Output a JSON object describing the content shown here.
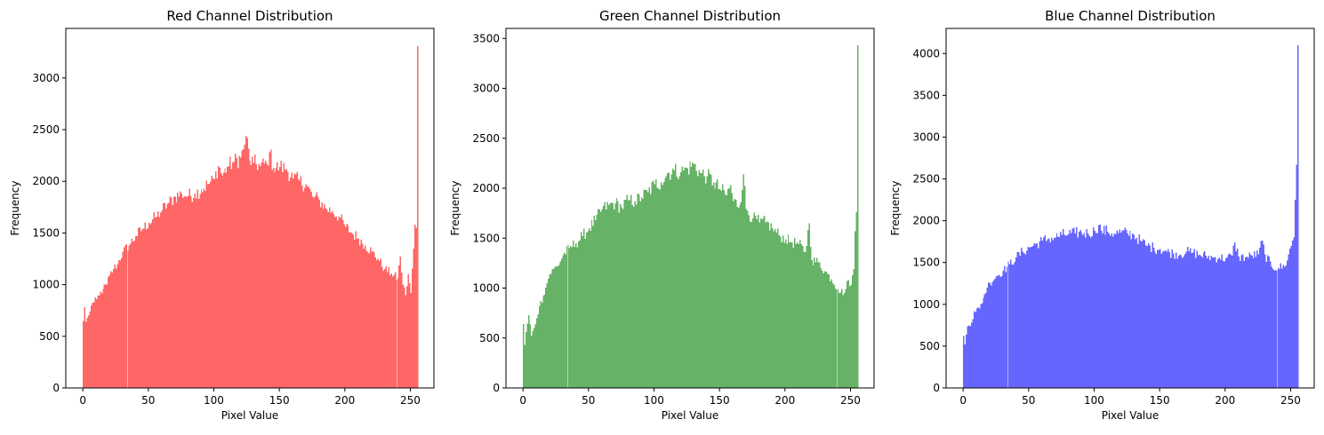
{
  "chart_data": [
    {
      "type": "bar",
      "title": "Red Channel Distribution",
      "xlabel": "Pixel Value",
      "ylabel": "Frequency",
      "color": "#ff6666",
      "xlim": [
        -13,
        268
      ],
      "ylim": [
        0,
        3480
      ],
      "xticks": [
        0,
        50,
        100,
        150,
        200,
        250
      ],
      "yticks": [
        0,
        500,
        1000,
        1500,
        2000,
        2500,
        3000
      ],
      "anchors": [
        [
          0,
          650
        ],
        [
          1,
          780
        ],
        [
          2,
          640
        ],
        [
          4,
          700
        ],
        [
          6,
          800
        ],
        [
          8,
          830
        ],
        [
          10,
          860
        ],
        [
          12,
          900
        ],
        [
          15,
          960
        ],
        [
          18,
          1000
        ],
        [
          20,
          1090
        ],
        [
          23,
          1150
        ],
        [
          26,
          1200
        ],
        [
          30,
          1320
        ],
        [
          35,
          1380
        ],
        [
          40,
          1470
        ],
        [
          45,
          1540
        ],
        [
          50,
          1600
        ],
        [
          55,
          1650
        ],
        [
          60,
          1720
        ],
        [
          65,
          1790
        ],
        [
          70,
          1850
        ],
        [
          75,
          1880
        ],
        [
          80,
          1860
        ],
        [
          85,
          1880
        ],
        [
          90,
          1920
        ],
        [
          95,
          1970
        ],
        [
          100,
          2020
        ],
        [
          103,
          2150
        ],
        [
          106,
          2060
        ],
        [
          110,
          2140
        ],
        [
          115,
          2190
        ],
        [
          120,
          2230
        ],
        [
          122,
          2310
        ],
        [
          124,
          2440
        ],
        [
          127,
          2200
        ],
        [
          130,
          2180
        ],
        [
          135,
          2150
        ],
        [
          140,
          2170
        ],
        [
          142,
          2280
        ],
        [
          145,
          2130
        ],
        [
          150,
          2140
        ],
        [
          155,
          2120
        ],
        [
          160,
          2030
        ],
        [
          165,
          2000
        ],
        [
          170,
          1970
        ],
        [
          175,
          1850
        ],
        [
          180,
          1820
        ],
        [
          185,
          1740
        ],
        [
          190,
          1710
        ],
        [
          195,
          1660
        ],
        [
          200,
          1560
        ],
        [
          205,
          1500
        ],
        [
          210,
          1450
        ],
        [
          215,
          1380
        ],
        [
          220,
          1320
        ],
        [
          225,
          1250
        ],
        [
          230,
          1150
        ],
        [
          235,
          1110
        ],
        [
          240,
          1060
        ],
        [
          242,
          1270
        ],
        [
          244,
          1000
        ],
        [
          246,
          900
        ],
        [
          248,
          1100
        ],
        [
          250,
          920
        ],
        [
          252,
          1350
        ],
        [
          253,
          1580
        ],
        [
          254,
          1550
        ],
        [
          255,
          3310
        ]
      ]
    },
    {
      "type": "bar",
      "title": "Green Channel Distribution",
      "xlabel": "Pixel Value",
      "ylabel": "Frequency",
      "color": "#66b266",
      "xlim": [
        -13,
        268
      ],
      "ylim": [
        0,
        3600
      ],
      "xticks": [
        0,
        50,
        100,
        150,
        200,
        250
      ],
      "yticks": [
        0,
        500,
        1000,
        1500,
        2000,
        2500,
        3000,
        3500
      ],
      "anchors": [
        [
          0,
          640
        ],
        [
          1,
          430
        ],
        [
          2,
          560
        ],
        [
          4,
          730
        ],
        [
          6,
          520
        ],
        [
          8,
          600
        ],
        [
          10,
          700
        ],
        [
          12,
          820
        ],
        [
          15,
          920
        ],
        [
          18,
          1050
        ],
        [
          20,
          1140
        ],
        [
          23,
          1190
        ],
        [
          26,
          1220
        ],
        [
          30,
          1330
        ],
        [
          35,
          1400
        ],
        [
          40,
          1450
        ],
        [
          45,
          1520
        ],
        [
          50,
          1600
        ],
        [
          55,
          1680
        ],
        [
          60,
          1790
        ],
        [
          65,
          1830
        ],
        [
          70,
          1850
        ],
        [
          75,
          1810
        ],
        [
          80,
          1880
        ],
        [
          85,
          1870
        ],
        [
          90,
          1910
        ],
        [
          95,
          1960
        ],
        [
          100,
          2040
        ],
        [
          105,
          2060
        ],
        [
          108,
          2100
        ],
        [
          110,
          2150
        ],
        [
          115,
          2180
        ],
        [
          120,
          2160
        ],
        [
          125,
          2200
        ],
        [
          130,
          2240
        ],
        [
          135,
          2150
        ],
        [
          140,
          2120
        ],
        [
          145,
          2060
        ],
        [
          150,
          1990
        ],
        [
          155,
          1930
        ],
        [
          158,
          2030
        ],
        [
          160,
          1870
        ],
        [
          165,
          1830
        ],
        [
          168,
          2140
        ],
        [
          170,
          1790
        ],
        [
          175,
          1700
        ],
        [
          180,
          1660
        ],
        [
          185,
          1660
        ],
        [
          190,
          1600
        ],
        [
          195,
          1530
        ],
        [
          200,
          1490
        ],
        [
          205,
          1460
        ],
        [
          210,
          1440
        ],
        [
          215,
          1360
        ],
        [
          218,
          1650
        ],
        [
          220,
          1280
        ],
        [
          225,
          1260
        ],
        [
          230,
          1170
        ],
        [
          235,
          1090
        ],
        [
          240,
          990
        ],
        [
          245,
          950
        ],
        [
          248,
          1080
        ],
        [
          250,
          1030
        ],
        [
          252,
          1190
        ],
        [
          253,
          1570
        ],
        [
          254,
          1760
        ],
        [
          255,
          3430
        ]
      ]
    },
    {
      "type": "bar",
      "title": "Blue Channel Distribution",
      "xlabel": "Pixel Value",
      "ylabel": "Frequency",
      "color": "#6666ff",
      "xlim": [
        -13,
        268
      ],
      "ylim": [
        0,
        4300
      ],
      "xticks": [
        0,
        50,
        100,
        150,
        200,
        250
      ],
      "yticks": [
        0,
        500,
        1000,
        1500,
        2000,
        2500,
        3000,
        3500,
        4000
      ],
      "anchors": [
        [
          0,
          620
        ],
        [
          1,
          520
        ],
        [
          3,
          740
        ],
        [
          6,
          780
        ],
        [
          8,
          920
        ],
        [
          12,
          950
        ],
        [
          15,
          1080
        ],
        [
          18,
          1200
        ],
        [
          20,
          1260
        ],
        [
          25,
          1340
        ],
        [
          30,
          1400
        ],
        [
          35,
          1480
        ],
        [
          40,
          1560
        ],
        [
          45,
          1630
        ],
        [
          50,
          1680
        ],
        [
          55,
          1720
        ],
        [
          60,
          1760
        ],
        [
          65,
          1790
        ],
        [
          70,
          1800
        ],
        [
          75,
          1830
        ],
        [
          80,
          1840
        ],
        [
          85,
          1850
        ],
        [
          90,
          1860
        ],
        [
          95,
          1850
        ],
        [
          100,
          1880
        ],
        [
          103,
          1950
        ],
        [
          105,
          1880
        ],
        [
          110,
          1870
        ],
        [
          115,
          1850
        ],
        [
          120,
          1860
        ],
        [
          125,
          1850
        ],
        [
          130,
          1830
        ],
        [
          135,
          1760
        ],
        [
          140,
          1700
        ],
        [
          145,
          1680
        ],
        [
          150,
          1660
        ],
        [
          155,
          1630
        ],
        [
          160,
          1610
        ],
        [
          165,
          1600
        ],
        [
          170,
          1630
        ],
        [
          175,
          1620
        ],
        [
          180,
          1590
        ],
        [
          185,
          1580
        ],
        [
          190,
          1560
        ],
        [
          195,
          1560
        ],
        [
          200,
          1550
        ],
        [
          205,
          1580
        ],
        [
          207,
          1740
        ],
        [
          210,
          1570
        ],
        [
          215,
          1560
        ],
        [
          220,
          1580
        ],
        [
          225,
          1600
        ],
        [
          228,
          1760
        ],
        [
          230,
          1600
        ],
        [
          235,
          1450
        ],
        [
          240,
          1440
        ],
        [
          245,
          1450
        ],
        [
          248,
          1600
        ],
        [
          250,
          1700
        ],
        [
          252,
          1800
        ],
        [
          253,
          2250
        ],
        [
          254,
          2670
        ],
        [
          255,
          4100
        ]
      ]
    }
  ]
}
